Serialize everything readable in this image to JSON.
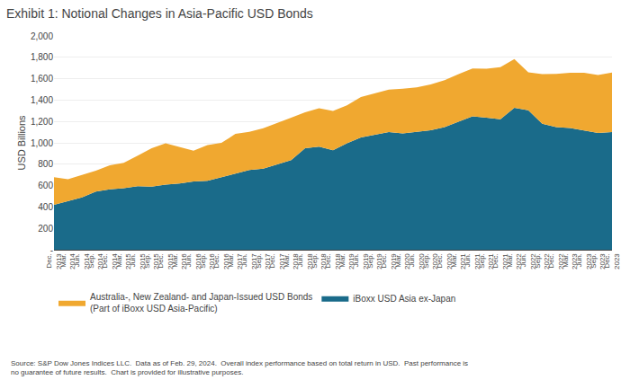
{
  "chart_data": {
    "type": "area",
    "stacked": true,
    "title": "Exhibit 1: Notional Changes in Asia-Pacific USD Bonds",
    "ylabel": "USD Billions",
    "categories": [
      "Dec.\n2013",
      "Mar.\n2014",
      "Jun.\n2014",
      "Sep.\n2014",
      "Dec.\n2014",
      "Mar.\n2015",
      "Jun.\n2015",
      "Sep.\n2015",
      "Dec.\n2015",
      "Mar.\n2016",
      "Jun.\n2016",
      "Sep.\n2016",
      "Dec.\n2016",
      "Mar.\n2017",
      "Jun.\n2017",
      "Sep.\n2017",
      "Dec.\n2017",
      "Mar.\n2018",
      "Jun.\n2018",
      "Sep.\n2018",
      "Dec.\n2018",
      "Mar.\n2019",
      "Jun.\n2019",
      "Sep.\n2019",
      "Dec.\n2019",
      "Mar.\n2020",
      "Jun.\n2020",
      "Sep.\n2020",
      "Dec.\n2020",
      "Mar.\n2021",
      "Jun.\n2021",
      "Sep.\n2021",
      "Dec.\n2021",
      "Mar.\n2022",
      "Jun.\n2022",
      "Sep.\n2022",
      "Dec.\n2022",
      "Mar.\n2023",
      "Jun.\n2023",
      "Sep.\n2023",
      "Dec.\n2023"
    ],
    "series": [
      {
        "name": "iBoxx USD Asia ex-Japan",
        "color": "#1a6b8a",
        "values": [
          420,
          455,
          490,
          545,
          565,
          575,
          595,
          590,
          610,
          620,
          638,
          645,
          678,
          715,
          745,
          758,
          800,
          838,
          950,
          965,
          930,
          995,
          1050,
          1075,
          1100,
          1088,
          1100,
          1118,
          1148,
          1195,
          1248,
          1235,
          1220,
          1328,
          1305,
          1178,
          1148,
          1138,
          1118,
          1092,
          1100
        ]
      },
      {
        "name": "Australia-, New Zealand- and Japan-Issued USD Bonds\n(Part of iBoxx USD Asia-Pacific)",
        "color": "#f0a830",
        "values": [
          258,
          205,
          210,
          195,
          225,
          238,
          285,
          360,
          385,
          338,
          288,
          335,
          322,
          368,
          358,
          378,
          388,
          398,
          335,
          358,
          368,
          355,
          378,
          388,
          398,
          418,
          418,
          428,
          438,
          448,
          448,
          458,
          488,
          455,
          355,
          465,
          498,
          518,
          538,
          542,
          558
        ]
      }
    ],
    "ylim": [
      0,
      2000
    ],
    "yticks": [
      {
        "value": 0,
        "label": "-"
      },
      200,
      400,
      600,
      800,
      {
        "value": 1000,
        "label": "1,000"
      },
      {
        "value": 1200,
        "label": "1,200"
      },
      {
        "value": 1400,
        "label": "1,400"
      },
      {
        "value": 1600,
        "label": "1,600"
      },
      {
        "value": 1800,
        "label": "1,800"
      },
      {
        "value": 2000,
        "label": "2,000"
      }
    ],
    "grid": true,
    "legend": "bottom",
    "annotations": [
      "Source: S&P Dow Jones Indices LLC.  Data as of Feb. 29, 2024.  Overall index performance based on total return in USD.  Past performance is\nno guarantee of future results.  Chart is provided for illustrative purposes."
    ]
  }
}
